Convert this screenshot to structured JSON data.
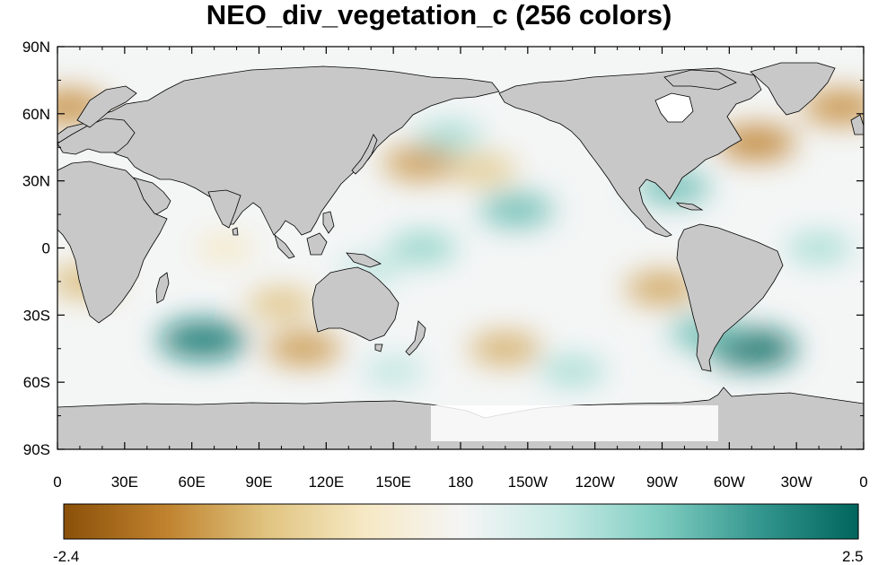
{
  "title": "NEO_div_vegetation_c (256 colors)",
  "map": {
    "projection": "cylindrical equidistant",
    "lon_range": [
      0,
      360
    ],
    "lat_range": [
      -90,
      90
    ],
    "land_color": "#c8c8c8",
    "ocean_background": "#ffffff",
    "coastline_color": "#000000",
    "lat_labels": [
      "90N",
      "60N",
      "30N",
      "0",
      "30S",
      "60S",
      "90S"
    ],
    "lat_values": [
      90,
      60,
      30,
      0,
      -30,
      -60,
      -90
    ],
    "lon_labels": [
      "0",
      "30E",
      "60E",
      "90E",
      "120E",
      "150E",
      "180",
      "150W",
      "120W",
      "90W",
      "60W",
      "30W",
      "0"
    ],
    "lon_values": [
      0,
      30,
      60,
      90,
      120,
      150,
      180,
      210,
      240,
      270,
      300,
      330,
      360
    ],
    "ocean_anomalies": [
      {
        "lon": 65,
        "lat": -41,
        "value": 2.3
      },
      {
        "lon": 110,
        "lat": -45,
        "value": -1.6
      },
      {
        "lon": 100,
        "lat": -25,
        "value": -1.2
      },
      {
        "lon": 200,
        "lat": -45,
        "value": -1.4
      },
      {
        "lon": 190,
        "lat": 35,
        "value": -1.1
      },
      {
        "lon": 162,
        "lat": 38,
        "value": -1.6
      },
      {
        "lon": 205,
        "lat": 17,
        "value": 1.5
      },
      {
        "lon": 163,
        "lat": 0,
        "value": 1.2
      },
      {
        "lon": 270,
        "lat": -18,
        "value": -1.5
      },
      {
        "lon": 310,
        "lat": -45,
        "value": 2.4
      },
      {
        "lon": 290,
        "lat": -38,
        "value": 1.5
      },
      {
        "lon": 312,
        "lat": 47,
        "value": -1.8
      },
      {
        "lon": 275,
        "lat": 27,
        "value": 1.5
      },
      {
        "lon": 350,
        "lat": 63,
        "value": -1.7
      },
      {
        "lon": 5,
        "lat": 63,
        "value": -1.7
      },
      {
        "lon": 12,
        "lat": -15,
        "value": -1.3
      },
      {
        "lon": 340,
        "lat": 0,
        "value": 1.0
      },
      {
        "lon": 175,
        "lat": 50,
        "value": 1.0
      },
      {
        "lon": 230,
        "lat": -55,
        "value": 1.0
      },
      {
        "lon": 150,
        "lat": -55,
        "value": 0.8
      },
      {
        "lon": 75,
        "lat": 0,
        "value": -0.6
      },
      {
        "lon": 140,
        "lat": -10,
        "value": 0.8
      }
    ]
  },
  "colorbar": {
    "min_label": "-2.4",
    "max_label": "2.5",
    "min": -2.4,
    "max": 2.5,
    "stops": [
      "#8c510a",
      "#bf812d",
      "#dfc27d",
      "#f6e8c3",
      "#f5f5f5",
      "#c7eae5",
      "#80cdc1",
      "#35978f",
      "#01665e"
    ]
  }
}
